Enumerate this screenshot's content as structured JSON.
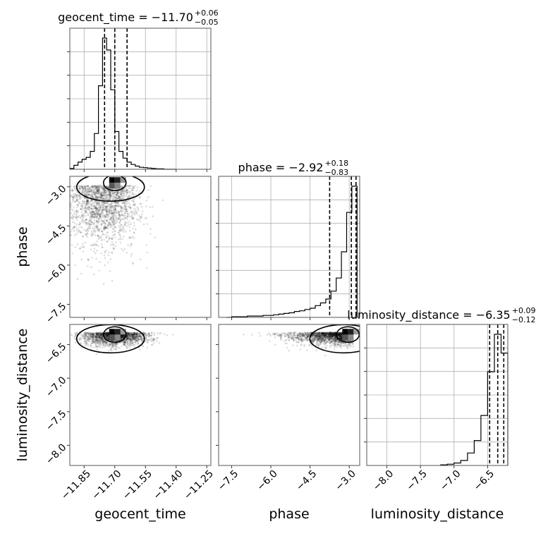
{
  "chart_data": {
    "type": "corner",
    "parameters": [
      "geocent_time",
      "phase",
      "luminosity_distance"
    ],
    "axis_labels": {
      "geocent_time": "geocent_time",
      "phase": "phase",
      "luminosity_distance": "luminosity_distance"
    },
    "ranges": {
      "geocent_time": [
        -11.92,
        -11.23
      ],
      "phase": [
        -8.0,
        -2.6
      ],
      "luminosity_distance": [
        -8.3,
        -6.2
      ]
    },
    "ticks": {
      "geocent_time": {
        "values": [
          -11.85,
          -11.7,
          -11.55,
          -11.4,
          -11.25
        ],
        "labels": [
          "−11.85",
          "−11.70",
          "−11.55",
          "−11.40",
          "−11.25"
        ]
      },
      "phase": {
        "values": [
          -7.5,
          -6.0,
          -4.5,
          -3.0
        ],
        "labels": [
          "−7.5",
          "−6.0",
          "−4.5",
          "−3.0"
        ]
      },
      "luminosity_distance": {
        "values": [
          -8.0,
          -7.5,
          -7.0,
          -6.5
        ],
        "labels": [
          "−8.0",
          "−7.5",
          "−7.0",
          "−6.5"
        ]
      }
    },
    "titles": [
      {
        "param": "geocent_time",
        "prefix": "geocent_time = −11.70",
        "plus": "+0.06",
        "minus": "−0.05"
      },
      {
        "param": "phase",
        "prefix": "phase = −2.92",
        "plus": "+0.18",
        "minus": "−0.83"
      },
      {
        "param": "luminosity_distance",
        "prefix": "luminosity_distance = −6.35",
        "plus": "+0.09",
        "minus": "−0.12"
      }
    ],
    "histograms": {
      "geocent_time": {
        "edges": [
          -11.92,
          -11.9,
          -11.88,
          -11.86,
          -11.84,
          -11.82,
          -11.8,
          -11.78,
          -11.76,
          -11.74,
          -11.72,
          -11.7,
          -11.68,
          -11.66,
          -11.64,
          -11.62,
          -11.6,
          -11.58,
          -11.56,
          -11.54,
          -11.52,
          -11.5,
          -11.48,
          -11.46,
          -11.44,
          -11.42,
          -11.4
        ],
        "counts": [
          2,
          10,
          18,
          25,
          30,
          45,
          90,
          210,
          330,
          300,
          200,
          95,
          45,
          28,
          18,
          12,
          8,
          5,
          4,
          3,
          2,
          1,
          1,
          0,
          0,
          0
        ],
        "quantiles": [
          -11.75,
          -11.7,
          -11.64
        ]
      },
      "phase": {
        "edges": [
          -7.7,
          -7.5,
          -7.3,
          -7.1,
          -6.9,
          -6.7,
          -6.5,
          -6.3,
          -6.1,
          -5.9,
          -5.7,
          -5.5,
          -5.3,
          -5.1,
          -4.9,
          -4.7,
          -4.5,
          -4.3,
          -4.1,
          -3.9,
          -3.7,
          -3.5,
          -3.3,
          -3.1,
          -2.9,
          -2.7
        ],
        "counts": [
          0,
          1,
          1,
          1,
          2,
          2,
          2,
          3,
          3,
          4,
          5,
          6,
          7,
          9,
          10,
          12,
          14,
          18,
          22,
          28,
          40,
          60,
          100,
          160,
          200
        ],
        "quantiles": [
          -3.75,
          -2.92,
          -2.74
        ]
      },
      "luminosity_distance": {
        "edges": [
          -7.2,
          -7.1,
          -7.0,
          -6.9,
          -6.8,
          -6.7,
          -6.6,
          -6.5,
          -6.4,
          -6.3,
          -6.2
        ],
        "counts": [
          1,
          2,
          4,
          8,
          20,
          40,
          80,
          150,
          210,
          180
        ],
        "quantiles": [
          -6.47,
          -6.35,
          -6.26
        ]
      }
    },
    "scatter_regions": [
      {
        "pair": [
          "geocent_time",
          "phase"
        ],
        "center": [
          -11.76,
          -3.6
        ],
        "spread": [
          0.09,
          0.9
        ]
      },
      {
        "pair": [
          "geocent_time",
          "luminosity_distance"
        ],
        "center": [
          -11.7,
          -6.4
        ],
        "spread": [
          0.08,
          0.09
        ]
      },
      {
        "pair": [
          "phase",
          "luminosity_distance"
        ],
        "center": [
          -3.6,
          -6.4
        ],
        "spread": [
          0.9,
          0.08
        ]
      }
    ]
  }
}
